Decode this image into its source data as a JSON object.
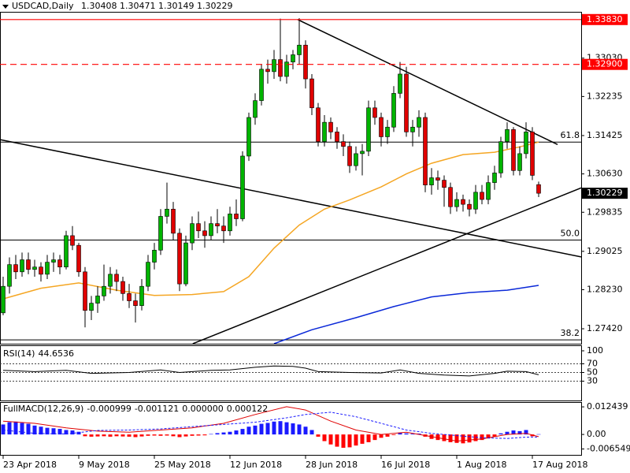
{
  "chart_data": {
    "type": "candlestick",
    "symbol": "USDCAD,Daily",
    "categories": [
      "23 Apr 2018",
      null,
      null,
      null,
      null,
      null,
      null,
      null,
      null,
      null,
      null,
      null,
      "9 May 2018",
      null,
      null,
      null,
      null,
      null,
      null,
      null,
      null,
      null,
      null,
      null,
      "25 May 2018",
      null,
      null,
      null,
      null,
      null,
      null,
      null,
      null,
      null,
      null,
      null,
      "12 Jun 2018",
      null,
      null,
      null,
      null,
      null,
      null,
      null,
      null,
      null,
      null,
      null,
      "28 Jun 2018",
      null,
      null,
      null,
      null,
      null,
      null,
      null,
      null,
      null,
      null,
      null,
      "16 Jul 2018",
      null,
      null,
      null,
      null,
      null,
      null,
      null,
      null,
      null,
      null,
      null,
      "1 Aug 2018",
      null,
      null,
      null,
      null,
      null,
      null,
      null,
      null,
      null,
      null,
      null,
      "17 Aug 2018",
      null
    ],
    "candles": [
      [
        1.2775,
        1.285,
        1.277,
        1.283
      ],
      [
        1.283,
        1.289,
        1.2815,
        1.2875
      ],
      [
        1.2875,
        1.2895,
        1.2845,
        1.286
      ],
      [
        1.286,
        1.29,
        1.285,
        1.2885
      ],
      [
        1.2885,
        1.29,
        1.2855,
        1.2865
      ],
      [
        1.2865,
        1.2885,
        1.285,
        1.287
      ],
      [
        1.287,
        1.288,
        1.284,
        1.2855
      ],
      [
        1.2855,
        1.2895,
        1.2845,
        1.288
      ],
      [
        1.288,
        1.29,
        1.286,
        1.2885
      ],
      [
        1.2885,
        1.2895,
        1.2855,
        1.287
      ],
      [
        1.287,
        1.2945,
        1.2865,
        1.2935
      ],
      [
        1.2935,
        1.2955,
        1.2905,
        1.2915
      ],
      [
        1.2915,
        1.292,
        1.285,
        1.286
      ],
      [
        1.286,
        1.287,
        1.2745,
        1.278
      ],
      [
        1.278,
        1.281,
        1.276,
        1.2795
      ],
      [
        1.2795,
        1.283,
        1.2775,
        1.281
      ],
      [
        1.281,
        1.2875,
        1.28,
        1.283
      ],
      [
        1.283,
        1.287,
        1.2815,
        1.2855
      ],
      [
        1.2855,
        1.2865,
        1.282,
        1.284
      ],
      [
        1.284,
        1.285,
        1.28,
        1.2815
      ],
      [
        1.2815,
        1.2835,
        1.2785,
        1.28
      ],
      [
        1.28,
        1.2815,
        1.2755,
        1.279
      ],
      [
        1.279,
        1.2845,
        1.278,
        1.283
      ],
      [
        1.283,
        1.2895,
        1.282,
        1.288
      ],
      [
        1.288,
        1.292,
        1.2865,
        1.2905
      ],
      [
        1.2905,
        1.299,
        1.2895,
        1.2975
      ],
      [
        1.2975,
        1.3045,
        1.296,
        1.299
      ],
      [
        1.299,
        1.3005,
        1.2925,
        1.294
      ],
      [
        1.294,
        1.295,
        1.282,
        1.2835
      ],
      [
        1.2835,
        1.2935,
        1.283,
        1.292
      ],
      [
        1.292,
        1.2975,
        1.2905,
        1.296
      ],
      [
        1.296,
        1.2985,
        1.293,
        1.2945
      ],
      [
        1.2945,
        1.2965,
        1.291,
        1.2935
      ],
      [
        1.2935,
        1.2975,
        1.2925,
        1.296
      ],
      [
        1.296,
        1.299,
        1.294,
        1.2955
      ],
      [
        1.2955,
        1.2975,
        1.292,
        1.2945
      ],
      [
        1.2945,
        1.2995,
        1.2935,
        1.298
      ],
      [
        1.298,
        1.301,
        1.2955,
        1.297
      ],
      [
        1.297,
        1.311,
        1.2965,
        1.31
      ],
      [
        1.31,
        1.319,
        1.309,
        1.318
      ],
      [
        1.318,
        1.323,
        1.3165,
        1.3215
      ],
      [
        1.3215,
        1.329,
        1.3205,
        1.328
      ],
      [
        1.328,
        1.33,
        1.325,
        1.3275
      ],
      [
        1.3275,
        1.332,
        1.326,
        1.33
      ],
      [
        1.33,
        1.3385,
        1.3255,
        1.3265
      ],
      [
        1.3265,
        1.331,
        1.325,
        1.3295
      ],
      [
        1.3295,
        1.332,
        1.328,
        1.331
      ],
      [
        1.331,
        1.3386,
        1.329,
        1.333
      ],
      [
        1.333,
        1.334,
        1.324,
        1.326
      ],
      [
        1.326,
        1.327,
        1.3185,
        1.32
      ],
      [
        1.32,
        1.321,
        1.312,
        1.313
      ],
      [
        1.313,
        1.3185,
        1.312,
        1.317
      ],
      [
        1.317,
        1.318,
        1.3135,
        1.315
      ],
      [
        1.315,
        1.316,
        1.3115,
        1.313
      ],
      [
        1.313,
        1.3145,
        1.31,
        1.312
      ],
      [
        1.312,
        1.313,
        1.3065,
        1.308
      ],
      [
        1.308,
        1.312,
        1.307,
        1.3105
      ],
      [
        1.3105,
        1.3125,
        1.306,
        1.311
      ],
      [
        1.311,
        1.3215,
        1.31,
        1.32
      ],
      [
        1.32,
        1.3215,
        1.3165,
        1.318
      ],
      [
        1.318,
        1.319,
        1.312,
        1.314
      ],
      [
        1.314,
        1.3175,
        1.3125,
        1.316
      ],
      [
        1.316,
        1.3245,
        1.315,
        1.323
      ],
      [
        1.323,
        1.3295,
        1.322,
        1.327
      ],
      [
        1.327,
        1.3285,
        1.314,
        1.315
      ],
      [
        1.315,
        1.3175,
        1.312,
        1.316
      ],
      [
        1.316,
        1.3195,
        1.314,
        1.318
      ],
      [
        1.318,
        1.319,
        1.3025,
        1.304
      ],
      [
        1.304,
        1.3075,
        1.302,
        1.3055
      ],
      [
        1.3055,
        1.307,
        1.303,
        1.305
      ],
      [
        1.305,
        1.306,
        1.2995,
        1.3035
      ],
      [
        1.3035,
        1.3045,
        1.298,
        1.2995
      ],
      [
        1.2995,
        1.3025,
        1.2985,
        1.301
      ],
      [
        1.301,
        1.302,
        1.2985,
        1.3
      ],
      [
        1.3,
        1.301,
        1.2975,
        1.299
      ],
      [
        1.299,
        1.304,
        1.298,
        1.3025
      ],
      [
        1.3025,
        1.304,
        1.3,
        1.301
      ],
      [
        1.301,
        1.306,
        1.3,
        1.3045
      ],
      [
        1.3045,
        1.308,
        1.303,
        1.3065
      ],
      [
        1.3065,
        1.314,
        1.3055,
        1.313
      ],
      [
        1.313,
        1.317,
        1.3115,
        1.3155
      ],
      [
        1.3155,
        1.316,
        1.306,
        1.307
      ],
      [
        1.307,
        1.312,
        1.306,
        1.3105
      ],
      [
        1.3105,
        1.317,
        1.3095,
        1.315
      ],
      [
        1.315,
        1.316,
        1.305,
        1.306
      ],
      [
        1.30408,
        1.30471,
        1.30149,
        1.30229
      ]
    ],
    "up_color": "#00b400",
    "down_color": "#e00000",
    "xlim": [
      -0.5,
      91.75
    ],
    "ylim": [
      1.2711,
      1.3399
    ],
    "yticks": [
      {
        "value": 1.3303,
        "label": "1.33030"
      },
      1.32235,
      1.31425,
      {
        "value": 1.3063,
        "label": "1.30630"
      },
      1.29835,
      1.29025,
      {
        "value": 1.2823,
        "label": "1.28230"
      },
      {
        "value": 1.2742,
        "label": "1.27420"
      }
    ],
    "levels": [
      {
        "value": 1.3383,
        "label": "1.33830",
        "dashed": false
      },
      {
        "value": 1.329,
        "label": "1.32900",
        "dashed": true
      }
    ],
    "level_color": "#ff0000",
    "fib_levels": [
      {
        "value": 1.3129,
        "label": "61.8"
      },
      {
        "value": 1.2926,
        "label": "50.0"
      },
      {
        "value": 1.2719,
        "label": "38.2"
      }
    ],
    "moving_averages": [
      {
        "color": "#f5a623",
        "x": [
          0,
          6,
          12,
          18,
          24,
          30,
          35,
          39,
          43,
          47,
          51,
          55,
          60,
          64,
          68,
          73,
          78,
          82,
          85
        ],
        "values": [
          1.2804,
          1.2826,
          1.2837,
          1.2822,
          1.2811,
          1.2813,
          1.2819,
          1.285,
          1.2909,
          1.2957,
          1.299,
          1.3009,
          1.3036,
          1.3063,
          1.3085,
          1.3103,
          1.3108,
          1.3119,
          1.3129
        ]
      },
      {
        "color": "#0a28d8",
        "x": [
          43,
          49,
          56,
          62,
          68,
          74,
          80,
          85
        ],
        "values": [
          1.2711,
          1.274,
          1.2765,
          1.2788,
          1.2808,
          1.2817,
          1.2822,
          1.2832
        ]
      }
    ],
    "trendlines": [
      {
        "x": [
          -0.5,
          91.75
        ],
        "y": [
          1.3134,
          1.2891
        ]
      },
      {
        "x": [
          46.75,
          88
        ],
        "y": [
          1.3383,
          1.3124
        ]
      },
      {
        "x": [
          30.1,
          91.75
        ],
        "y": [
          1.2711,
          1.3034
        ]
      }
    ],
    "rsi": {
      "name": "RSI(14)",
      "color": "#000000",
      "ylim": [
        0,
        100
      ],
      "yticks": [
        100,
        70,
        50,
        30
      ],
      "levels": [
        70,
        50,
        30
      ],
      "x": [
        0,
        5,
        10,
        14,
        20,
        25,
        28,
        33,
        36,
        40,
        43,
        46,
        48,
        50,
        55,
        60,
        63,
        66,
        70,
        74,
        78,
        80,
        83,
        85
      ],
      "values": [
        55,
        52,
        55,
        48,
        50,
        56,
        50,
        55,
        56,
        62,
        65,
        64,
        60,
        52,
        50,
        49,
        56,
        48,
        44,
        42,
        48,
        53,
        52,
        44.6536
      ]
    },
    "macd": {
      "name": "FullMACD(12,26,9)",
      "ylim": [
        -0.0092,
        0.0146
      ],
      "yticks": [
        0.012439,
        {
          "value": 0,
          "label": "0.00"
        },
        -0.006549
      ],
      "extra_readout": {
        "value": 0,
        "label": "0.000000"
      },
      "histogram": [
        0.0045,
        0.0055,
        0.0058,
        0.0052,
        0.0048,
        0.004,
        0.0035,
        0.003,
        0.0028,
        0.0025,
        0.002,
        0.0018,
        0.0012,
        -0.0008,
        -0.001,
        -0.0009,
        -0.0008,
        -0.001,
        -0.0008,
        -0.0009,
        -0.001,
        -0.0012,
        -0.0009,
        -0.0006,
        -0.0005,
        -0.0006,
        -0.0005,
        -0.0008,
        -0.0012,
        -0.0009,
        -0.0006,
        -0.0005,
        -0.0004,
        0.0002,
        0.0006,
        0.0009,
        0.0012,
        0.0018,
        0.0025,
        0.0035,
        0.004,
        0.0048,
        0.0052,
        0.0058,
        0.006,
        0.0055,
        0.005,
        0.0045,
        0.0035,
        0.002,
        -0.001,
        -0.003,
        -0.0045,
        -0.0055,
        -0.006,
        -0.0058,
        -0.005,
        -0.0042,
        -0.0035,
        -0.0025,
        -0.0015,
        -0.001,
        -0.0003,
        0.0008,
        0.0005,
        0.0003,
        0.0004,
        -0.001,
        -0.002,
        -0.0025,
        -0.003,
        -0.0035,
        -0.0038,
        -0.004,
        -0.0036,
        -0.003,
        -0.0025,
        -0.0018,
        -0.001,
        0.0005,
        0.0012,
        0.0018,
        0.0015,
        0.002,
        -0.0008,
        0.000122
      ],
      "up_color": "#1a1aff",
      "down_color": "#ff0000",
      "series": [
        {
          "color": "#e00000",
          "dashed": false,
          "x": [
            0,
            5,
            10,
            15,
            20,
            25,
            30,
            35,
            40,
            45,
            48,
            52,
            56,
            60,
            64,
            68,
            72,
            76,
            80,
            83,
            85
          ],
          "values": [
            0.006,
            0.005,
            0.003,
            0.0015,
            0.001,
            0.002,
            0.003,
            0.005,
            0.009,
            0.0125,
            0.011,
            0.006,
            0.002,
            0.0,
            0.001,
            -0.001,
            -0.003,
            -0.002,
            0.0,
            0.0005,
            -0.000999
          ]
        },
        {
          "color": "#1a1aff",
          "dashed": true,
          "x": [
            0,
            5,
            10,
            15,
            20,
            25,
            30,
            35,
            40,
            45,
            48,
            52,
            56,
            60,
            64,
            68,
            72,
            76,
            80,
            83,
            85
          ],
          "values": [
            0.002,
            0.0005,
            0.0002,
            0.0018,
            0.002,
            0.0025,
            0.0035,
            0.0045,
            0.0055,
            0.0075,
            0.009,
            0.01,
            0.008,
            0.005,
            0.002,
            0.0005,
            -0.0005,
            -0.0015,
            -0.0018,
            -0.0012,
            -0.001121
          ]
        }
      ]
    }
  }
}
